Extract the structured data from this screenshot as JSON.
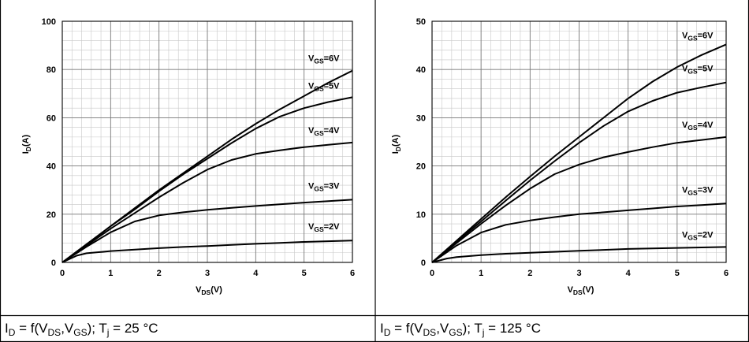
{
  "chart_data": [
    {
      "type": "line",
      "xlabel_main": "V",
      "xlabel_sub": "DS",
      "xlabel_tail": "(V)",
      "ylabel_main": "I",
      "ylabel_sub": "D",
      "ylabel_tail": "(A)",
      "xlim": [
        0,
        6
      ],
      "ylim": [
        0,
        100
      ],
      "xticks": [
        0,
        1,
        2,
        3,
        4,
        5,
        6
      ],
      "yticks": [
        0,
        20,
        40,
        60,
        80,
        100
      ],
      "grid": true,
      "series": [
        {
          "name_main": "V",
          "name_sub": "GS",
          "name_tail": "=6V",
          "x": [
            0,
            0.5,
            1,
            1.5,
            2,
            2.5,
            3,
            3.5,
            4,
            4.5,
            5,
            5.5,
            6
          ],
          "y": [
            0,
            7.5,
            15,
            22.5,
            30,
            37,
            44,
            51,
            57.5,
            63.5,
            69,
            74.5,
            79.5
          ]
        },
        {
          "name_main": "V",
          "name_sub": "GS",
          "name_tail": "=5V",
          "x": [
            0,
            0.5,
            1,
            1.5,
            2,
            2.5,
            3,
            3.5,
            4,
            4.5,
            5,
            5.5,
            6
          ],
          "y": [
            0,
            7.5,
            15,
            22,
            29.5,
            36.5,
            43,
            49.5,
            55.5,
            60.5,
            64,
            66.5,
            68.5
          ]
        },
        {
          "name_main": "V",
          "name_sub": "GS",
          "name_tail": "=4V",
          "x": [
            0,
            0.5,
            1,
            1.5,
            2,
            2.5,
            3,
            3.5,
            4,
            4.5,
            5,
            5.5,
            6
          ],
          "y": [
            0,
            7,
            14,
            20.5,
            27,
            33,
            38.5,
            42.5,
            45,
            46.5,
            47.8,
            48.8,
            49.7
          ]
        },
        {
          "name_main": "V",
          "name_sub": "GS",
          "name_tail": "=3V",
          "x": [
            0,
            0.5,
            1,
            1.5,
            2,
            2.5,
            3,
            3.5,
            4,
            4.5,
            5,
            5.5,
            6
          ],
          "y": [
            0,
            6.5,
            12.5,
            17,
            19.5,
            20.8,
            21.8,
            22.6,
            23.4,
            24.1,
            24.8,
            25.4,
            26
          ]
        },
        {
          "name_main": "V",
          "name_sub": "GS",
          "name_tail": "=2V",
          "x": [
            0,
            0.3,
            0.5,
            1,
            1.5,
            2,
            2.5,
            3,
            3.5,
            4,
            4.5,
            5,
            5.5,
            6
          ],
          "y": [
            0,
            2.8,
            3.8,
            4.7,
            5.3,
            5.9,
            6.4,
            6.8,
            7.3,
            7.7,
            8.1,
            8.5,
            8.8,
            9.1
          ]
        }
      ]
    },
    {
      "type": "line",
      "xlabel_main": "V",
      "xlabel_sub": "DS",
      "xlabel_tail": "(V)",
      "ylabel_main": "I",
      "ylabel_sub": "D",
      "ylabel_tail": "(A)",
      "xlim": [
        0,
        6
      ],
      "ylim": [
        0,
        50
      ],
      "xticks": [
        0,
        1,
        2,
        3,
        4,
        5,
        6
      ],
      "yticks": [
        0,
        10,
        20,
        30,
        40,
        50
      ],
      "grid": true,
      "series": [
        {
          "name_main": "V",
          "name_sub": "GS",
          "name_tail": "=6V",
          "x": [
            0,
            0.5,
            1,
            1.5,
            2,
            2.5,
            3,
            3.5,
            4,
            4.5,
            5,
            5.5,
            6
          ],
          "y": [
            0,
            4.5,
            9,
            13.5,
            17.8,
            22,
            26,
            30,
            34,
            37.5,
            40.5,
            43,
            45.2
          ]
        },
        {
          "name_main": "V",
          "name_sub": "GS",
          "name_tail": "=5V",
          "x": [
            0,
            0.5,
            1,
            1.5,
            2,
            2.5,
            3,
            3.5,
            4,
            4.5,
            5,
            5.5,
            6
          ],
          "y": [
            0,
            4.3,
            8.5,
            12.8,
            17,
            21,
            24.8,
            28.3,
            31.3,
            33.5,
            35.2,
            36.3,
            37.3
          ]
        },
        {
          "name_main": "V",
          "name_sub": "GS",
          "name_tail": "=4V",
          "x": [
            0,
            0.5,
            1,
            1.5,
            2,
            2.5,
            3,
            3.5,
            4,
            4.5,
            5,
            5.5,
            6
          ],
          "y": [
            0,
            4,
            8,
            11.8,
            15.3,
            18.3,
            20.3,
            21.8,
            22.9,
            23.9,
            24.8,
            25.4,
            26
          ]
        },
        {
          "name_main": "V",
          "name_sub": "GS",
          "name_tail": "=3V",
          "x": [
            0,
            0.5,
            1,
            1.5,
            2,
            2.5,
            3,
            3.5,
            4,
            4.5,
            5,
            5.5,
            6
          ],
          "y": [
            0,
            3.5,
            6.2,
            7.8,
            8.7,
            9.4,
            10,
            10.4,
            10.8,
            11.2,
            11.6,
            11.9,
            12.2
          ]
        },
        {
          "name_main": "V",
          "name_sub": "GS",
          "name_tail": "=2V",
          "x": [
            0,
            0.3,
            0.5,
            1,
            1.5,
            2,
            2.5,
            3,
            3.5,
            4,
            4.5,
            5,
            5.5,
            6
          ],
          "y": [
            0,
            0.8,
            1.1,
            1.5,
            1.8,
            2.0,
            2.2,
            2.4,
            2.6,
            2.8,
            2.9,
            3.0,
            3.1,
            3.2
          ]
        }
      ]
    }
  ],
  "captions": [
    {
      "p1": "I",
      "s1": "D",
      "p2": " = f(V",
      "s2": "DS",
      "p3": ",V",
      "s3": "GS",
      "p4": "); T",
      "s4": "j",
      "p5": " = 25 °C"
    },
    {
      "p1": "I",
      "s1": "D",
      "p2": " = f(V",
      "s2": "DS",
      "p3": ",V",
      "s3": "GS",
      "p4": "); T",
      "s4": "j",
      "p5": " = 125 °C"
    }
  ]
}
